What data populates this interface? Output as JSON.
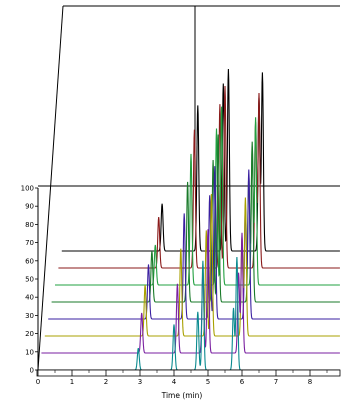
{
  "chart_data": {
    "type": "line",
    "style": "3d-stacked-chromatograms",
    "xlabel": "Time (min)",
    "ylabel": "",
    "x_ticks": [
      0,
      1,
      2,
      3,
      4,
      5,
      6,
      7,
      8
    ],
    "y_ticks": [
      0,
      10,
      20,
      30,
      40,
      50,
      60,
      70,
      80,
      90,
      100
    ],
    "xlim": [
      0,
      9
    ],
    "ylim": [
      0,
      100
    ],
    "grid": false,
    "legend": "none",
    "series": [
      {
        "color": "#0a8a8f",
        "peaks": [
          {
            "t": 2.95,
            "h": 12
          },
          {
            "t": 4.0,
            "h": 25
          },
          {
            "t": 4.7,
            "h": 32
          },
          {
            "t": 4.85,
            "h": 60
          },
          {
            "t": 5.75,
            "h": 34
          },
          {
            "t": 5.85,
            "h": 62
          }
        ]
      },
      {
        "color": "#7a1fa0",
        "peaks": [
          {
            "t": 2.95,
            "h": 22
          },
          {
            "t": 4.0,
            "h": 38
          },
          {
            "t": 4.75,
            "h": 45
          },
          {
            "t": 4.9,
            "h": 68
          },
          {
            "t": 5.8,
            "h": 44
          },
          {
            "t": 5.9,
            "h": 66
          }
        ]
      },
      {
        "color": "#a8a000",
        "peaks": [
          {
            "t": 2.95,
            "h": 28
          },
          {
            "t": 4.0,
            "h": 48
          },
          {
            "t": 4.75,
            "h": 58
          },
          {
            "t": 4.9,
            "h": 78
          },
          {
            "t": 5.8,
            "h": 54
          },
          {
            "t": 5.9,
            "h": 76
          }
        ]
      },
      {
        "color": "#3a1fa0",
        "peaks": [
          {
            "t": 2.95,
            "h": 30
          },
          {
            "t": 4.0,
            "h": 58
          },
          {
            "t": 4.75,
            "h": 68
          },
          {
            "t": 4.9,
            "h": 84
          },
          {
            "t": 5.8,
            "h": 62
          },
          {
            "t": 5.9,
            "h": 82
          }
        ]
      },
      {
        "color": "#1a7a2a",
        "peaks": [
          {
            "t": 2.95,
            "h": 28
          },
          {
            "t": 4.0,
            "h": 66
          },
          {
            "t": 4.75,
            "h": 78
          },
          {
            "t": 4.9,
            "h": 92
          },
          {
            "t": 5.8,
            "h": 70
          },
          {
            "t": 5.9,
            "h": 88
          }
        ]
      },
      {
        "color": "#22a040",
        "peaks": [
          {
            "t": 2.95,
            "h": 22
          },
          {
            "t": 4.0,
            "h": 72
          },
          {
            "t": 4.75,
            "h": 86
          },
          {
            "t": 4.9,
            "h": 98
          },
          {
            "t": 5.8,
            "h": 76
          },
          {
            "t": 5.9,
            "h": 92
          }
        ]
      },
      {
        "color": "#8a1a1a",
        "peaks": [
          {
            "t": 2.95,
            "h": 28
          },
          {
            "t": 4.0,
            "h": 76
          },
          {
            "t": 4.75,
            "h": 90
          },
          {
            "t": 4.9,
            "h": 100
          },
          {
            "t": 5.8,
            "h": 80
          },
          {
            "t": 5.9,
            "h": 96
          }
        ]
      },
      {
        "color": "#000000",
        "peaks": [
          {
            "t": 2.95,
            "h": 26
          },
          {
            "t": 4.0,
            "h": 80
          },
          {
            "t": 4.75,
            "h": 92
          },
          {
            "t": 4.9,
            "h": 100
          },
          {
            "t": 5.8,
            "h": 84
          },
          {
            "t": 5.9,
            "h": 98
          }
        ]
      }
    ]
  }
}
